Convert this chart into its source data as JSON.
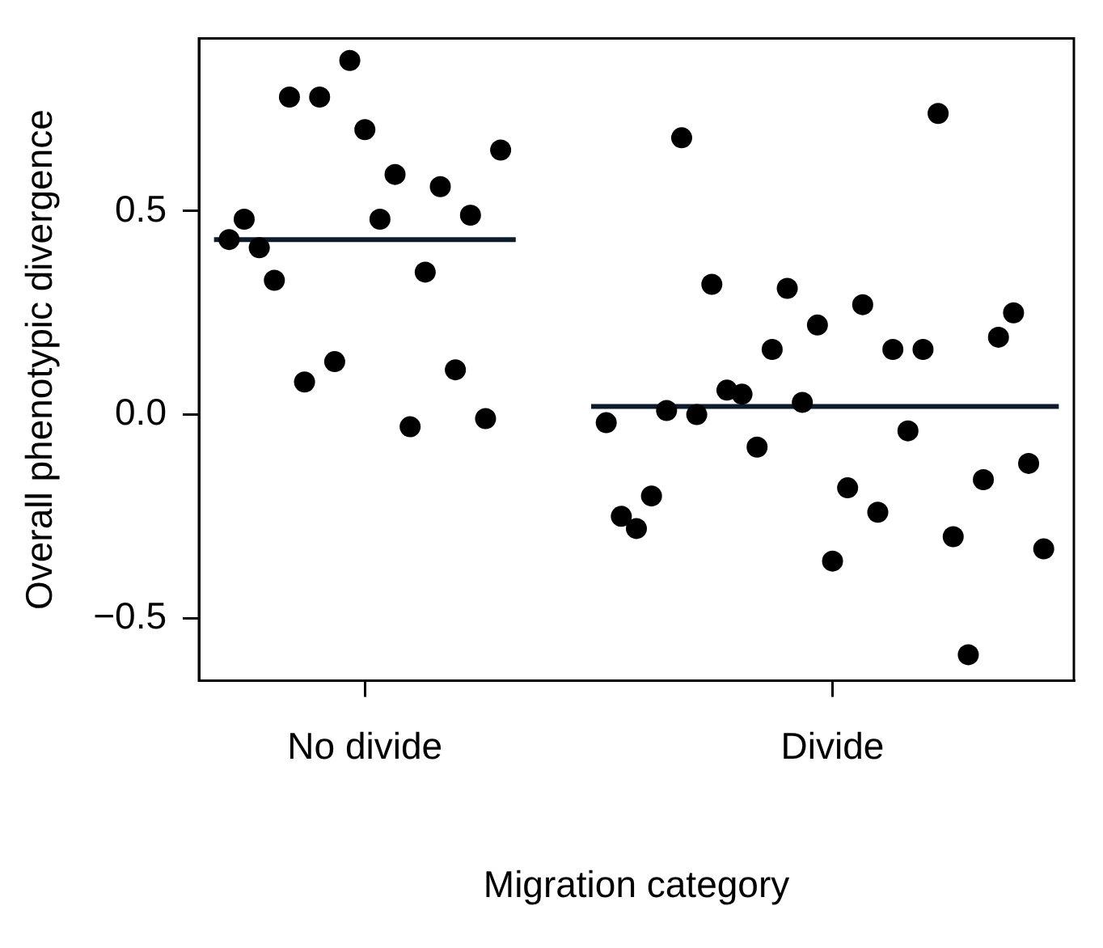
{
  "chart_data": {
    "type": "scatter",
    "xlabel": "Migration category",
    "ylabel": "Overall phenotypic divergence",
    "categories": [
      null,
      null,
      null,
      null,
      null,
      null,
      null,
      null,
      null,
      null,
      null,
      "No divide",
      null,
      null,
      null,
      null,
      null,
      null,
      null,
      null,
      null,
      null,
      null,
      null,
      null,
      null,
      null,
      null,
      null,
      null,
      null,
      null,
      null,
      null,
      null,
      null,
      null,
      null,
      null,
      null,
      null,
      null,
      "Divide",
      null,
      null,
      null,
      null,
      null,
      null,
      null,
      null,
      null,
      null,
      null,
      null,
      null,
      null,
      null,
      null
    ],
    "ylim": [
      -0.654,
      0.924
    ],
    "yticks": [
      {
        "value": -0.5,
        "label": "−0.5"
      },
      {
        "value": 0,
        "label": "0.0"
      },
      0.5
    ],
    "grid": false,
    "legend": false,
    "marker": "circle",
    "series": [
      {
        "type": "scatter",
        "color": "#000000",
        "values": [
          null,
          null,
          0.43,
          0.48,
          0.41,
          0.33,
          0.78,
          0.08,
          0.78,
          0.13,
          0.87,
          0.7,
          0.48,
          0.59,
          -0.03,
          0.35,
          0.56,
          0.11,
          0.49,
          -0.01,
          0.65,
          null,
          null,
          null,
          null,
          null,
          null,
          null,
          null,
          null,
          null,
          null,
          null,
          null,
          null,
          null,
          null,
          null,
          null,
          null,
          null,
          null,
          null,
          null,
          null,
          null,
          null,
          null,
          null,
          null,
          null,
          null,
          null,
          null,
          null,
          null,
          null,
          null,
          null
        ]
      },
      {
        "type": "scatter",
        "color": "#000000",
        "values": [
          null,
          null,
          null,
          null,
          null,
          null,
          null,
          null,
          null,
          null,
          null,
          null,
          null,
          null,
          null,
          null,
          null,
          null,
          null,
          null,
          null,
          null,
          null,
          null,
          null,
          null,
          null,
          -0.02,
          -0.25,
          -0.28,
          -0.2,
          0.01,
          0.68,
          0.0,
          0.32,
          0.06,
          0.05,
          -0.08,
          0.16,
          0.31,
          0.03,
          0.22,
          -0.36,
          -0.18,
          0.27,
          -0.24,
          0.16,
          -0.04,
          0.16,
          0.74,
          -0.3,
          -0.59,
          -0.16,
          0.19,
          0.25,
          -0.12,
          -0.33,
          null,
          null
        ]
      },
      {
        "type": "line",
        "color": "#0d1b2a",
        "marker": "none",
        "values": [
          null,
          0.43,
          0.43,
          0.43,
          0.43,
          0.43,
          0.43,
          0.43,
          0.43,
          0.43,
          0.43,
          0.43,
          0.43,
          0.43,
          0.43,
          0.43,
          0.43,
          0.43,
          0.43,
          0.43,
          0.43,
          0.43,
          null,
          null,
          null,
          null,
          0.02,
          0.02,
          0.02,
          0.02,
          0.02,
          0.02,
          0.02,
          0.02,
          0.02,
          0.02,
          0.02,
          0.02,
          0.02,
          0.02,
          0.02,
          0.02,
          0.02,
          0.02,
          0.02,
          0.02,
          0.02,
          0.02,
          0.02,
          0.02,
          0.02,
          0.02,
          0.02,
          0.02,
          0.02,
          0.02,
          0.02,
          0.02,
          null
        ]
      }
    ]
  }
}
